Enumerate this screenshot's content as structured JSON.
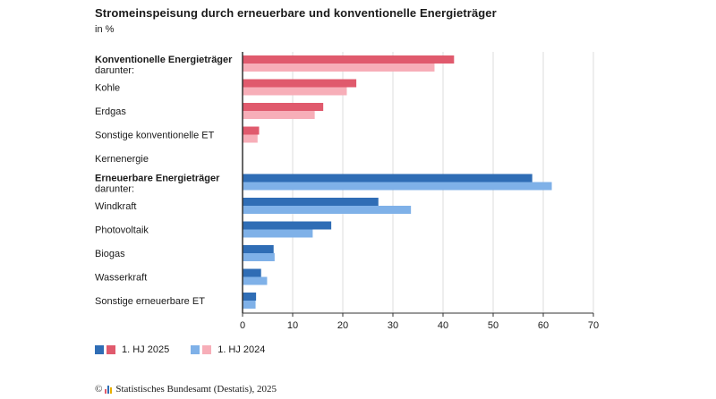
{
  "title": "Stromeinspeisung durch erneuerbare und konventionelle Energieträger",
  "subtitle": "in %",
  "legend": {
    "series1_label": "1. HJ 2025",
    "series2_label": "1. HJ 2024"
  },
  "source": {
    "copyright_symbol": "©",
    "text": "Statistisches Bundesamt (Destatis), 2025"
  },
  "colors": {
    "conv_2025": "#e05a6d",
    "conv_2024": "#f7aeb8",
    "ren_2025": "#2f6db5",
    "ren_2024": "#7fb1e8",
    "grid": "#dcdcdc",
    "axis": "#333333"
  },
  "chart_data": {
    "type": "bar",
    "orientation": "horizontal",
    "xlim": [
      0,
      70
    ],
    "xticks": [
      0,
      10,
      20,
      30,
      40,
      50,
      60,
      70
    ],
    "grid": true,
    "legend_position": "bottom-left",
    "categories": [
      {
        "label": "Konventionelle Energieträger",
        "sublabel": "darunter:",
        "bold": true,
        "group": "conv",
        "v2025": 42.2,
        "v2024": 38.3
      },
      {
        "label": "Kohle",
        "group": "conv",
        "v2025": 22.7,
        "v2024": 20.8
      },
      {
        "label": "Erdgas",
        "group": "conv",
        "v2025": 16.1,
        "v2024": 14.4
      },
      {
        "label": "Sonstige konventionelle ET",
        "group": "conv",
        "v2025": 3.3,
        "v2024": 3.0
      },
      {
        "label": "Kernenergie",
        "group": "conv",
        "v2025": 0,
        "v2024": 0
      },
      {
        "label": "Erneuerbare Energieträger",
        "sublabel": "darunter:",
        "bold": true,
        "group": "ren",
        "v2025": 57.8,
        "v2024": 61.7
      },
      {
        "label": "Windkraft",
        "group": "ren",
        "v2025": 27.1,
        "v2024": 33.6
      },
      {
        "label": "Photovoltaik",
        "group": "ren",
        "v2025": 17.7,
        "v2024": 14.0
      },
      {
        "label": "Biogas",
        "group": "ren",
        "v2025": 6.2,
        "v2024": 6.4
      },
      {
        "label": "Wasserkraft",
        "group": "ren",
        "v2025": 3.7,
        "v2024": 4.9
      },
      {
        "label": "Sonstige erneuerbare ET",
        "group": "ren",
        "v2025": 2.7,
        "v2024": 2.6
      }
    ]
  }
}
